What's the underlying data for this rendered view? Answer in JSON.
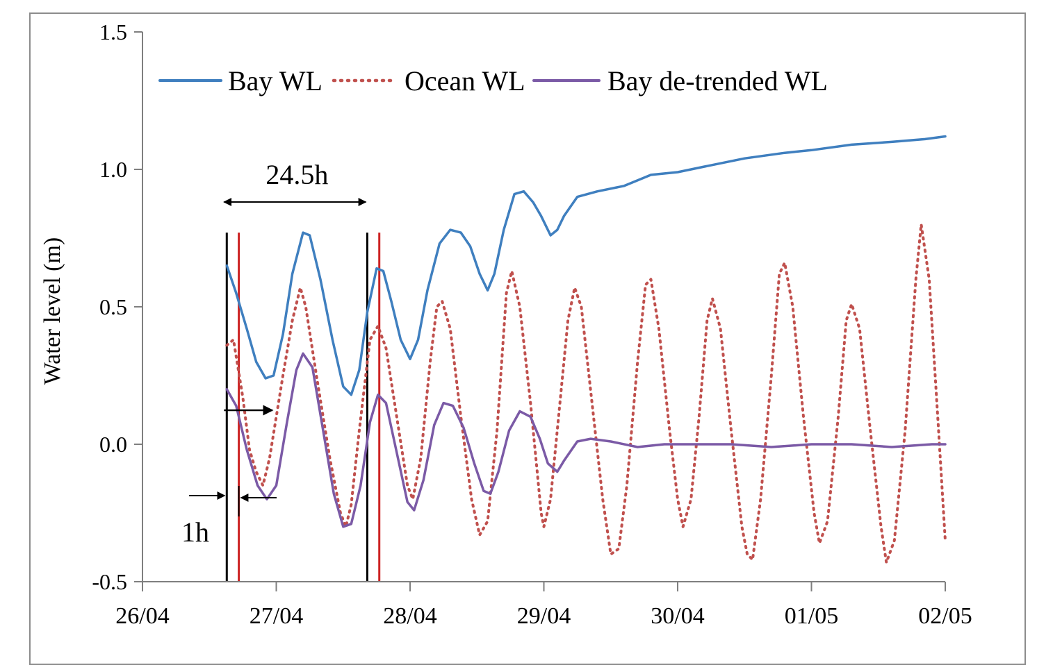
{
  "chart_data": {
    "type": "line",
    "xlabel": "",
    "ylabel": "Water level (m)",
    "ylim": [
      -0.5,
      1.5
    ],
    "yticks": [
      -0.5,
      0.0,
      0.5,
      1.0,
      1.5
    ],
    "ytick_labels": [
      "-0.5",
      "0.0",
      "0.5",
      "1.0",
      "1.5"
    ],
    "xlim_days": [
      0,
      6
    ],
    "xticks": [
      0,
      1,
      2,
      3,
      4,
      5,
      6
    ],
    "xtick_labels": [
      "26/04",
      "27/04",
      "28/04",
      "29/04",
      "30/04",
      "01/05",
      "02/05"
    ],
    "grid": false,
    "legend_position": "top",
    "series": [
      {
        "name": "Bay WL",
        "color": "#3f7fbf",
        "style": "solid",
        "points": [
          [
            0.63,
            0.65
          ],
          [
            0.7,
            0.55
          ],
          [
            0.78,
            0.42
          ],
          [
            0.85,
            0.3
          ],
          [
            0.92,
            0.24
          ],
          [
            0.98,
            0.25
          ],
          [
            1.05,
            0.4
          ],
          [
            1.12,
            0.62
          ],
          [
            1.2,
            0.77
          ],
          [
            1.25,
            0.76
          ],
          [
            1.33,
            0.6
          ],
          [
            1.42,
            0.38
          ],
          [
            1.5,
            0.21
          ],
          [
            1.56,
            0.18
          ],
          [
            1.62,
            0.27
          ],
          [
            1.68,
            0.48
          ],
          [
            1.75,
            0.64
          ],
          [
            1.8,
            0.63
          ],
          [
            1.86,
            0.52
          ],
          [
            1.93,
            0.38
          ],
          [
            2.0,
            0.31
          ],
          [
            2.06,
            0.38
          ],
          [
            2.13,
            0.56
          ],
          [
            2.22,
            0.73
          ],
          [
            2.3,
            0.78
          ],
          [
            2.38,
            0.77
          ],
          [
            2.45,
            0.72
          ],
          [
            2.52,
            0.62
          ],
          [
            2.58,
            0.56
          ],
          [
            2.63,
            0.62
          ],
          [
            2.7,
            0.78
          ],
          [
            2.78,
            0.91
          ],
          [
            2.85,
            0.92
          ],
          [
            2.92,
            0.88
          ],
          [
            2.98,
            0.83
          ],
          [
            3.05,
            0.76
          ],
          [
            3.1,
            0.78
          ],
          [
            3.15,
            0.83
          ],
          [
            3.25,
            0.9
          ],
          [
            3.4,
            0.92
          ],
          [
            3.6,
            0.94
          ],
          [
            3.8,
            0.98
          ],
          [
            4.0,
            0.99
          ],
          [
            4.2,
            1.01
          ],
          [
            4.5,
            1.04
          ],
          [
            4.8,
            1.06
          ],
          [
            5.0,
            1.07
          ],
          [
            5.3,
            1.09
          ],
          [
            5.6,
            1.1
          ],
          [
            5.85,
            1.11
          ],
          [
            6.0,
            1.12
          ]
        ]
      },
      {
        "name": "Ocean WL",
        "color": "#c0504d",
        "style": "dotted",
        "points": [
          [
            0.63,
            0.36
          ],
          [
            0.68,
            0.38
          ],
          [
            0.75,
            0.17
          ],
          [
            0.8,
            -0.02
          ],
          [
            0.85,
            -0.1
          ],
          [
            0.9,
            -0.15
          ],
          [
            0.95,
            -0.05
          ],
          [
            1.05,
            0.25
          ],
          [
            1.12,
            0.45
          ],
          [
            1.16,
            0.53
          ],
          [
            1.18,
            0.57
          ],
          [
            1.22,
            0.5
          ],
          [
            1.3,
            0.25
          ],
          [
            1.4,
            -0.05
          ],
          [
            1.48,
            -0.25
          ],
          [
            1.52,
            -0.3
          ],
          [
            1.56,
            -0.22
          ],
          [
            1.62,
            0.05
          ],
          [
            1.7,
            0.38
          ],
          [
            1.76,
            0.43
          ],
          [
            1.82,
            0.35
          ],
          [
            1.9,
            0.1
          ],
          [
            1.98,
            -0.15
          ],
          [
            2.02,
            -0.2
          ],
          [
            2.08,
            -0.05
          ],
          [
            2.15,
            0.3
          ],
          [
            2.2,
            0.5
          ],
          [
            2.24,
            0.52
          ],
          [
            2.3,
            0.42
          ],
          [
            2.38,
            0.1
          ],
          [
            2.46,
            -0.2
          ],
          [
            2.52,
            -0.33
          ],
          [
            2.58,
            -0.28
          ],
          [
            2.65,
            0.05
          ],
          [
            2.72,
            0.55
          ],
          [
            2.76,
            0.63
          ],
          [
            2.82,
            0.5
          ],
          [
            2.9,
            0.15
          ],
          [
            2.95,
            -0.1
          ],
          [
            2.98,
            -0.25
          ],
          [
            3.0,
            -0.3
          ],
          [
            3.05,
            -0.2
          ],
          [
            3.12,
            0.15
          ],
          [
            3.18,
            0.45
          ],
          [
            3.23,
            0.57
          ],
          [
            3.28,
            0.5
          ],
          [
            3.36,
            0.15
          ],
          [
            3.44,
            -0.2
          ],
          [
            3.5,
            -0.4
          ],
          [
            3.56,
            -0.38
          ],
          [
            3.62,
            -0.15
          ],
          [
            3.7,
            0.3
          ],
          [
            3.76,
            0.58
          ],
          [
            3.8,
            0.6
          ],
          [
            3.86,
            0.42
          ],
          [
            3.94,
            0.05
          ],
          [
            4.0,
            -0.2
          ],
          [
            4.04,
            -0.3
          ],
          [
            4.1,
            -0.2
          ],
          [
            4.16,
            0.1
          ],
          [
            4.22,
            0.45
          ],
          [
            4.26,
            0.53
          ],
          [
            4.32,
            0.42
          ],
          [
            4.4,
            0.05
          ],
          [
            4.48,
            -0.3
          ],
          [
            4.52,
            -0.4
          ],
          [
            4.56,
            -0.42
          ],
          [
            4.62,
            -0.2
          ],
          [
            4.7,
            0.25
          ],
          [
            4.76,
            0.62
          ],
          [
            4.8,
            0.66
          ],
          [
            4.86,
            0.5
          ],
          [
            4.94,
            0.1
          ],
          [
            5.02,
            -0.25
          ],
          [
            5.06,
            -0.36
          ],
          [
            5.12,
            -0.28
          ],
          [
            5.2,
            0.1
          ],
          [
            5.26,
            0.45
          ],
          [
            5.3,
            0.51
          ],
          [
            5.36,
            0.42
          ],
          [
            5.44,
            0.05
          ],
          [
            5.52,
            -0.3
          ],
          [
            5.56,
            -0.43
          ],
          [
            5.62,
            -0.35
          ],
          [
            5.7,
            0.05
          ],
          [
            5.78,
            0.6
          ],
          [
            5.82,
            0.8
          ],
          [
            5.88,
            0.6
          ],
          [
            5.95,
            0.05
          ],
          [
            6.0,
            -0.35
          ]
        ]
      },
      {
        "name": "Bay de-trended WL",
        "color": "#7b5aa6",
        "style": "solid",
        "points": [
          [
            0.63,
            0.2
          ],
          [
            0.7,
            0.14
          ],
          [
            0.78,
            -0.02
          ],
          [
            0.86,
            -0.15
          ],
          [
            0.93,
            -0.2
          ],
          [
            1.0,
            -0.15
          ],
          [
            1.08,
            0.08
          ],
          [
            1.15,
            0.27
          ],
          [
            1.2,
            0.33
          ],
          [
            1.27,
            0.28
          ],
          [
            1.35,
            0.05
          ],
          [
            1.43,
            -0.18
          ],
          [
            1.5,
            -0.3
          ],
          [
            1.56,
            -0.29
          ],
          [
            1.63,
            -0.15
          ],
          [
            1.7,
            0.08
          ],
          [
            1.76,
            0.18
          ],
          [
            1.82,
            0.15
          ],
          [
            1.9,
            -0.03
          ],
          [
            1.98,
            -0.21
          ],
          [
            2.03,
            -0.24
          ],
          [
            2.1,
            -0.13
          ],
          [
            2.18,
            0.07
          ],
          [
            2.25,
            0.15
          ],
          [
            2.32,
            0.14
          ],
          [
            2.4,
            0.06
          ],
          [
            2.48,
            -0.07
          ],
          [
            2.55,
            -0.17
          ],
          [
            2.6,
            -0.18
          ],
          [
            2.66,
            -0.1
          ],
          [
            2.74,
            0.05
          ],
          [
            2.82,
            0.12
          ],
          [
            2.9,
            0.1
          ],
          [
            2.97,
            0.02
          ],
          [
            3.03,
            -0.07
          ],
          [
            3.1,
            -0.1
          ],
          [
            3.15,
            -0.06
          ],
          [
            3.25,
            0.01
          ],
          [
            3.35,
            0.02
          ],
          [
            3.5,
            0.01
          ],
          [
            3.7,
            -0.01
          ],
          [
            3.9,
            0.0
          ],
          [
            4.1,
            0.0
          ],
          [
            4.4,
            0.0
          ],
          [
            4.7,
            -0.01
          ],
          [
            5.0,
            0.0
          ],
          [
            5.3,
            0.0
          ],
          [
            5.6,
            -0.01
          ],
          [
            5.9,
            0.0
          ],
          [
            6.0,
            0.0
          ]
        ]
      }
    ],
    "annotations": {
      "period_label": "24.5h",
      "lag_label": "1h",
      "black_vlines_days": [
        0.63,
        1.68
      ],
      "red_vlines_days": [
        0.72,
        1.77
      ],
      "black_vline_color": "#000000",
      "red_vline_color": "#cc2222"
    }
  }
}
